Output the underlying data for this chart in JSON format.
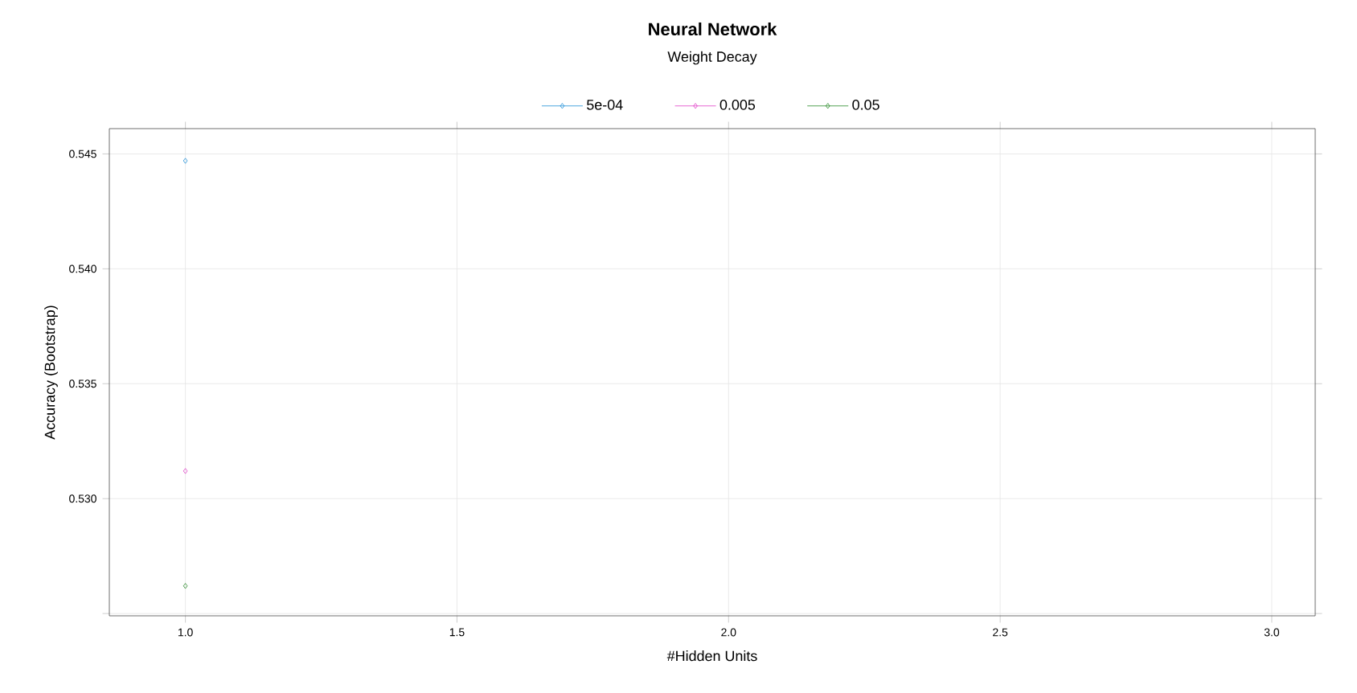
{
  "chart_data": {
    "type": "scatter",
    "title": "Neural Network",
    "xlabel": "#Hidden Units",
    "ylabel": "Accuracy (Bootstrap)",
    "legend_title": "Weight Decay",
    "x": [
      1.0
    ],
    "series": [
      {
        "name": "5e-04",
        "color": "#1f8fd8",
        "values": [
          0.5447
        ]
      },
      {
        "name": "0.005",
        "color": "#e040c8",
        "values": [
          0.5312
        ]
      },
      {
        "name": "0.05",
        "color": "#2a8a2a",
        "values": [
          0.5262
        ]
      }
    ],
    "xlim": [
      0.86,
      3.08
    ],
    "ylim": [
      0.5249,
      0.5461
    ],
    "xticks": [
      {
        "value": 1.0,
        "label": "1.0"
      },
      {
        "value": 1.5,
        "label": "1.5"
      },
      {
        "value": 2.0,
        "label": "2.0"
      },
      {
        "value": 2.5,
        "label": "2.5"
      },
      {
        "value": 3.0,
        "label": "3.0"
      }
    ],
    "yticks": [
      {
        "value": 0.525,
        "label": null
      },
      {
        "value": 0.53,
        "label": "0.530"
      },
      {
        "value": 0.535,
        "label": "0.535"
      },
      {
        "value": 0.54,
        "label": "0.540"
      },
      {
        "value": 0.545,
        "label": "0.545"
      }
    ],
    "grid": true,
    "legend": "top",
    "marker": "diamond",
    "line_style": "solid"
  }
}
